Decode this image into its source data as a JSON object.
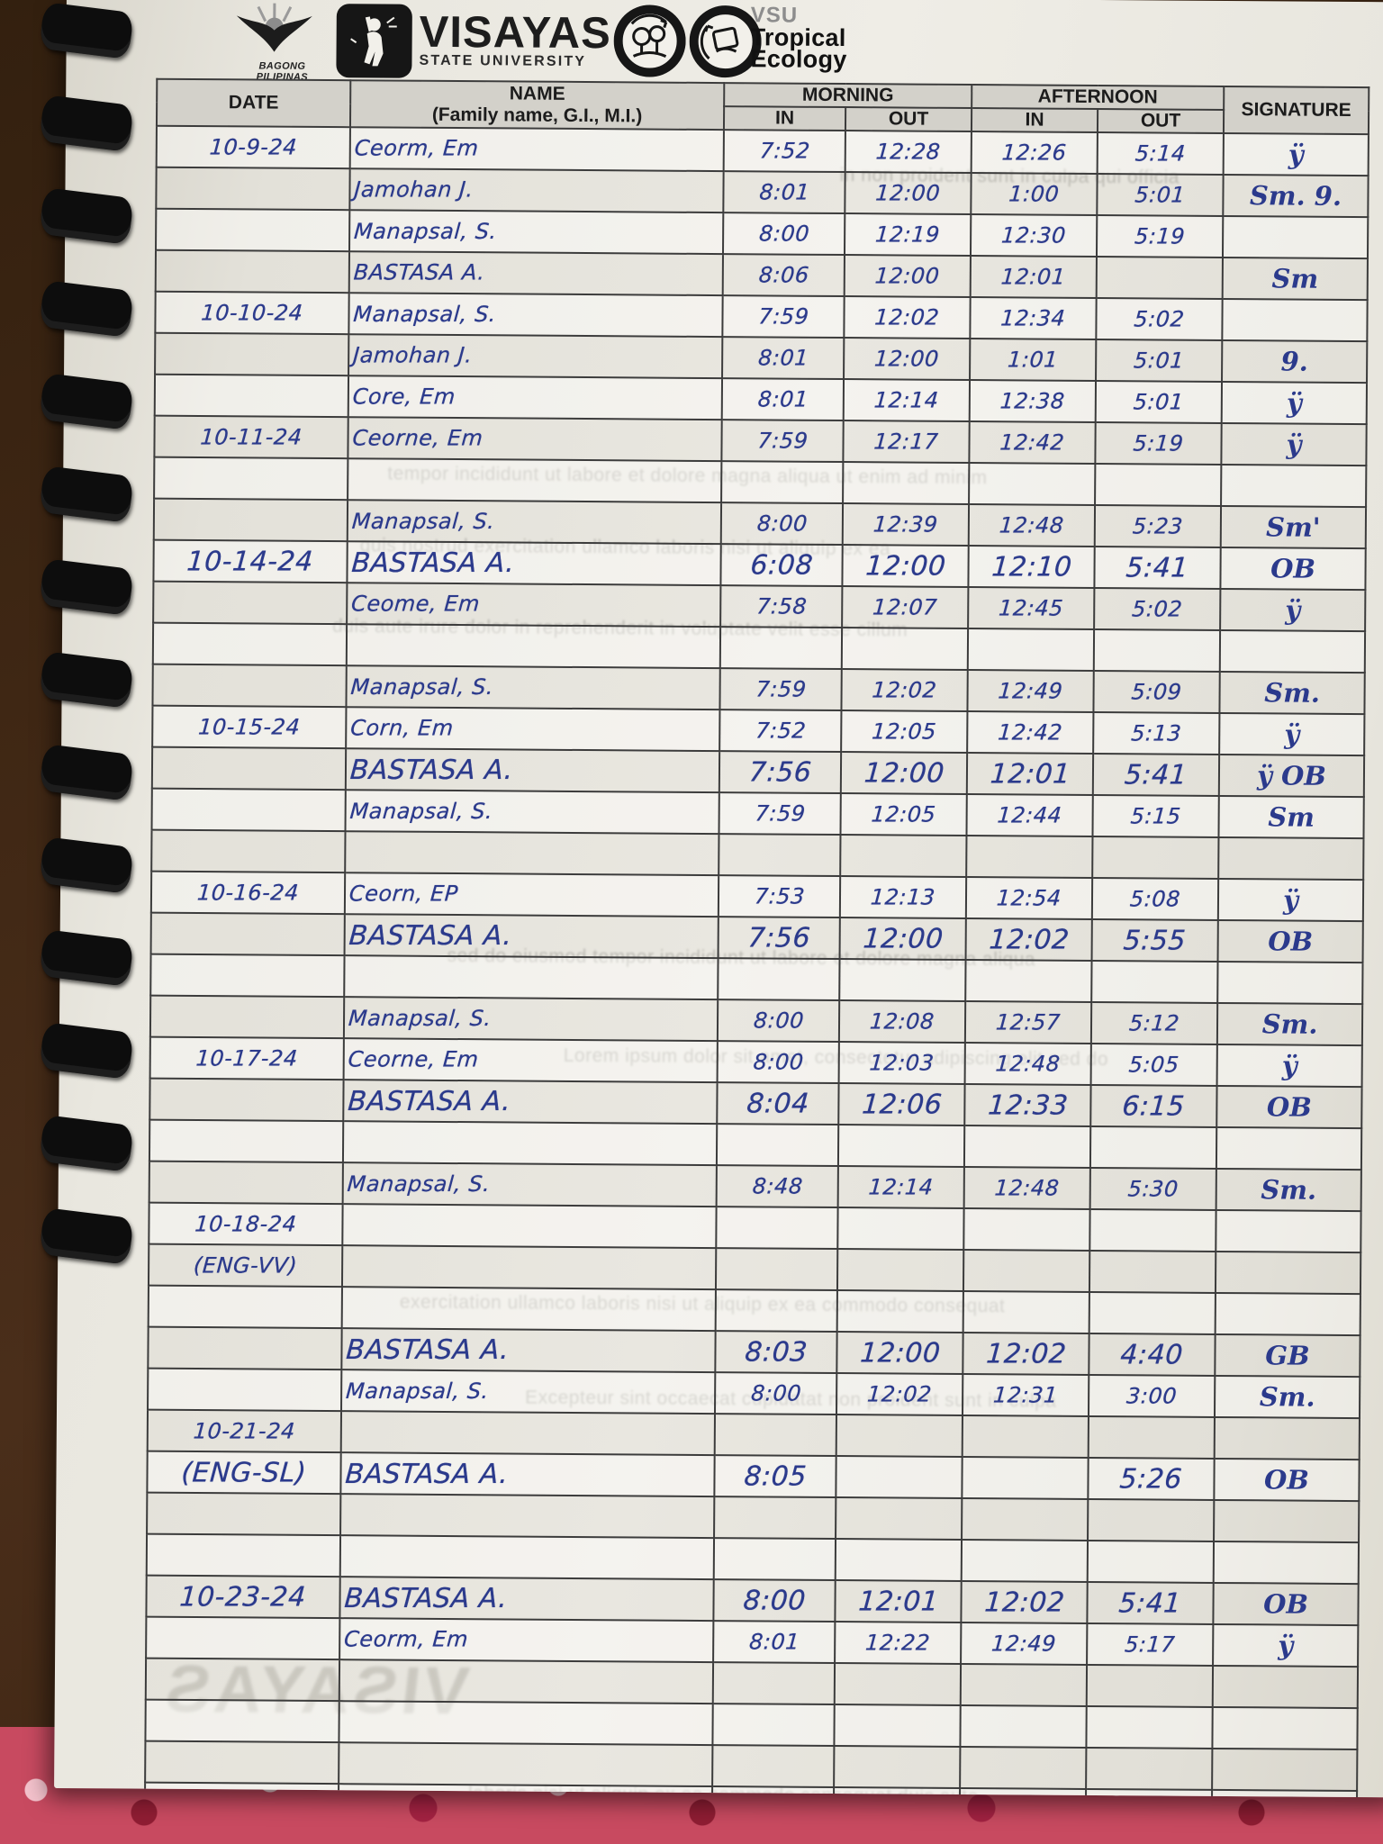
{
  "colors": {
    "ink": "#2b3a8c",
    "paper": "#efede6",
    "wood": "#3f2714",
    "fabric": "#c84a60",
    "header_fill": "#d3d1ca"
  },
  "page": {
    "header": {
      "bagong_pilipinas_label": "BAGONG PILIPINAS",
      "university_name": "VISAYAS",
      "university_subtitle": "STATE UNIVERSITY",
      "org_acronym": "VSU",
      "org_name_line1": "Tropical",
      "org_name_line2": "Ecology"
    },
    "binding": {
      "comb_count": 14
    },
    "table": {
      "headers": {
        "date": "DATE",
        "name": "NAME",
        "name_sub": "(Family name, G.I., M.I.)",
        "morning": "MORNING",
        "afternoon": "AFTERNOON",
        "in": "IN",
        "out": "OUT",
        "signature": "SIGNATURE"
      },
      "rows": [
        {
          "date": "10-9-24",
          "name": "Ceorm, Em",
          "m_in": "7:52",
          "m_out": "12:28",
          "a_in": "12:26",
          "a_out": "5:14",
          "sig": "ÿ",
          "lg": false
        },
        {
          "date": "",
          "name": "Jamohan J.",
          "m_in": "8:01",
          "m_out": "12:00",
          "a_in": "1:00",
          "a_out": "5:01",
          "sig": "Sm. 9.",
          "lg": false
        },
        {
          "date": "",
          "name": "Manapsal, S.",
          "m_in": "8:00",
          "m_out": "12:19",
          "a_in": "12:30",
          "a_out": "5:19",
          "sig": "",
          "lg": false
        },
        {
          "date": "",
          "name": "BASTASA A.",
          "m_in": "8:06",
          "m_out": "12:00",
          "a_in": "12:01",
          "a_out": "",
          "sig": "Sm",
          "lg": false
        },
        {
          "date": "10-10-24",
          "name": "Manapsal, S.",
          "m_in": "7:59",
          "m_out": "12:02",
          "a_in": "12:34",
          "a_out": "5:02",
          "sig": "",
          "lg": false
        },
        {
          "date": "",
          "name": "Jamohan J.",
          "m_in": "8:01",
          "m_out": "12:00",
          "a_in": "1:01",
          "a_out": "5:01",
          "sig": "9.",
          "lg": false
        },
        {
          "date": "",
          "name": "Core, Em",
          "m_in": "8:01",
          "m_out": "12:14",
          "a_in": "12:38",
          "a_out": "5:01",
          "sig": "ÿ",
          "lg": false
        },
        {
          "date": "10-11-24",
          "name": "Ceorne, Em",
          "m_in": "7:59",
          "m_out": "12:17",
          "a_in": "12:42",
          "a_out": "5:19",
          "sig": "ÿ",
          "lg": false
        },
        {
          "date": "",
          "name": "",
          "m_in": "",
          "m_out": "",
          "a_in": "",
          "a_out": "",
          "sig": "",
          "lg": false
        },
        {
          "date": "",
          "name": "Manapsal, S.",
          "m_in": "8:00",
          "m_out": "12:39",
          "a_in": "12:48",
          "a_out": "5:23",
          "sig": "Sm'",
          "lg": false
        },
        {
          "date": "10-14-24",
          "name": "BASTASA A.",
          "m_in": "6:08",
          "m_out": "12:00",
          "a_in": "12:10",
          "a_out": "5:41",
          "sig": "OB",
          "lg": true
        },
        {
          "date": "",
          "name": "Ceome, Em",
          "m_in": "7:58",
          "m_out": "12:07",
          "a_in": "12:45",
          "a_out": "5:02",
          "sig": "ÿ",
          "lg": false
        },
        {
          "date": "",
          "name": "",
          "m_in": "",
          "m_out": "",
          "a_in": "",
          "a_out": "",
          "sig": "",
          "lg": false
        },
        {
          "date": "",
          "name": "Manapsal, S.",
          "m_in": "7:59",
          "m_out": "12:02",
          "a_in": "12:49",
          "a_out": "5:09",
          "sig": "Sm.",
          "lg": false
        },
        {
          "date": "10-15-24",
          "name": "Corn, Em",
          "m_in": "7:52",
          "m_out": "12:05",
          "a_in": "12:42",
          "a_out": "5:13",
          "sig": "ÿ",
          "lg": false
        },
        {
          "date": "",
          "name": "BASTASA A.",
          "m_in": "7:56",
          "m_out": "12:00",
          "a_in": "12:01",
          "a_out": "5:41",
          "sig": "ÿ OB",
          "lg": true
        },
        {
          "date": "",
          "name": "Manapsal, S.",
          "m_in": "7:59",
          "m_out": "12:05",
          "a_in": "12:44",
          "a_out": "5:15",
          "sig": "Sm",
          "lg": false
        },
        {
          "date": "",
          "name": "",
          "m_in": "",
          "m_out": "",
          "a_in": "",
          "a_out": "",
          "sig": "",
          "lg": false
        },
        {
          "date": "10-16-24",
          "name": "Ceorn, EP",
          "m_in": "7:53",
          "m_out": "12:13",
          "a_in": "12:54",
          "a_out": "5:08",
          "sig": "ÿ",
          "lg": false
        },
        {
          "date": "",
          "name": "BASTASA A.",
          "m_in": "7:56",
          "m_out": "12:00",
          "a_in": "12:02",
          "a_out": "5:55",
          "sig": "OB",
          "lg": true
        },
        {
          "date": "",
          "name": "",
          "m_in": "",
          "m_out": "",
          "a_in": "",
          "a_out": "",
          "sig": "",
          "lg": false
        },
        {
          "date": "",
          "name": "Manapsal, S.",
          "m_in": "8:00",
          "m_out": "12:08",
          "a_in": "12:57",
          "a_out": "5:12",
          "sig": "Sm.",
          "lg": false
        },
        {
          "date": "10-17-24",
          "name": "Ceorne, Em",
          "m_in": "8:00",
          "m_out": "12:03",
          "a_in": "12:48",
          "a_out": "5:05",
          "sig": "ÿ",
          "lg": false
        },
        {
          "date": "",
          "name": "BASTASA A.",
          "m_in": "8:04",
          "m_out": "12:06",
          "a_in": "12:33",
          "a_out": "6:15",
          "sig": "OB",
          "lg": true
        },
        {
          "date": "",
          "name": "",
          "m_in": "",
          "m_out": "",
          "a_in": "",
          "a_out": "",
          "sig": "",
          "lg": false
        },
        {
          "date": "",
          "name": "Manapsal, S.",
          "m_in": "8:48",
          "m_out": "12:14",
          "a_in": "12:48",
          "a_out": "5:30",
          "sig": "Sm.",
          "lg": false
        },
        {
          "date": "10-18-24",
          "name": "",
          "m_in": "",
          "m_out": "",
          "a_in": "",
          "a_out": "",
          "sig": "",
          "lg": false
        },
        {
          "date": "(ENG-VV)",
          "name": "",
          "m_in": "",
          "m_out": "",
          "a_in": "",
          "a_out": "",
          "sig": "",
          "lg": false
        },
        {
          "date": "",
          "name": "",
          "m_in": "",
          "m_out": "",
          "a_in": "",
          "a_out": "",
          "sig": "",
          "lg": false
        },
        {
          "date": "",
          "name": "BASTASA A.",
          "m_in": "8:03",
          "m_out": "12:00",
          "a_in": "12:02",
          "a_out": "4:40",
          "sig": "GB",
          "lg": true
        },
        {
          "date": "",
          "name": "Manapsal, S.",
          "m_in": "8:00",
          "m_out": "12:02",
          "a_in": "12:31",
          "a_out": "3:00",
          "sig": "Sm.",
          "lg": false
        },
        {
          "date": "10-21-24",
          "name": "",
          "m_in": "",
          "m_out": "",
          "a_in": "",
          "a_out": "",
          "sig": "",
          "lg": false
        },
        {
          "date": "(ENG-SL)",
          "name": "BASTASA A.",
          "m_in": "8:05",
          "m_out": "",
          "a_in": "",
          "a_out": "5:26",
          "sig": "OB",
          "lg": true
        },
        {
          "date": "",
          "name": "",
          "m_in": "",
          "m_out": "",
          "a_in": "",
          "a_out": "",
          "sig": "",
          "lg": false
        },
        {
          "date": "",
          "name": "",
          "m_in": "",
          "m_out": "",
          "a_in": "",
          "a_out": "",
          "sig": "",
          "lg": false
        },
        {
          "date": "10-23-24",
          "name": "BASTASA A.",
          "m_in": "8:00",
          "m_out": "12:01",
          "a_in": "12:02",
          "a_out": "5:41",
          "sig": "OB",
          "lg": true
        },
        {
          "date": "",
          "name": "Ceorm, Em",
          "m_in": "8:01",
          "m_out": "12:22",
          "a_in": "12:49",
          "a_out": "5:17",
          "sig": "ÿ",
          "lg": false
        },
        {
          "date": "",
          "name": "",
          "m_in": "",
          "m_out": "",
          "a_in": "",
          "a_out": "",
          "sig": "",
          "lg": false
        },
        {
          "date": "",
          "name": "",
          "m_in": "",
          "m_out": "",
          "a_in": "",
          "a_out": "",
          "sig": "",
          "lg": false
        },
        {
          "date": "",
          "name": "",
          "m_in": "",
          "m_out": "",
          "a_in": "",
          "a_out": "",
          "sig": "",
          "lg": false
        },
        {
          "date": "",
          "name": "",
          "m_in": "",
          "m_out": "",
          "a_in": "",
          "a_out": "",
          "sig": "",
          "lg": false
        }
      ]
    },
    "bleedthrough": {
      "watermark": "VISAYAS",
      "lines": [
        "in non proident sunt in culpa qui officia",
        "tempor incididunt ut labore et dolore magna aliqua ut enim ad minim",
        "quis nostrud exercitation ullamco laboris nisi ut aliquip ex ea",
        "duis aute irure dolor in reprehenderit in voluptate velit esse cillum",
        "sed do eiusmod tempor incididunt ut labore et dolore magna aliqua",
        "Lorem ipsum dolor sit amet, consectetur adipiscing elit sed do",
        "exercitation ullamco laboris nisi ut aliquip ex ea commodo consequat",
        "Excepteur sint occaecat cupidatat non proident sunt in culpa",
        "laboris nisi ut aliquip ex ea commodo consequat duis aute"
      ]
    }
  }
}
